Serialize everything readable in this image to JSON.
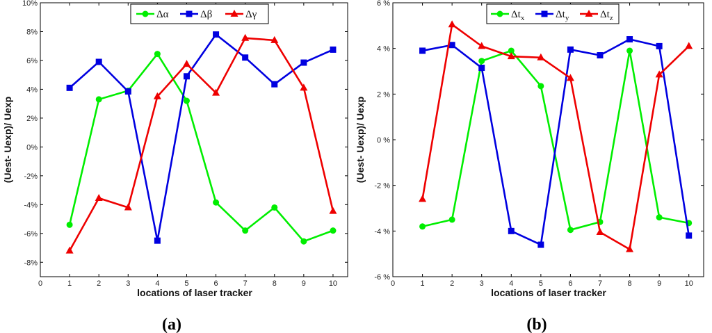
{
  "chart_data": [
    {
      "type": "line",
      "caption": "(a)",
      "xlabel": "locations of laser tracker",
      "ylabel": "(Uest- Uexp)/ Uexp",
      "xlim": [
        0,
        10.5
      ],
      "ylim": [
        -9,
        10
      ],
      "xticks": [
        "0",
        "1",
        "2",
        "3",
        "4",
        "5",
        "6",
        "7",
        "8",
        "9",
        "10"
      ],
      "yticks": [
        {
          "v": 10,
          "label": "10%"
        },
        {
          "v": 8,
          "label": "8%"
        },
        {
          "v": 6,
          "label": "6%"
        },
        {
          "v": 4,
          "label": "4%"
        },
        {
          "v": 2,
          "label": "2%"
        },
        {
          "v": 0,
          "label": "0%"
        },
        {
          "v": -2,
          "label": "-2%"
        },
        {
          "v": -4,
          "label": "-4%"
        },
        {
          "v": -6,
          "label": "-6%"
        },
        {
          "v": -8,
          "label": "-8%"
        }
      ],
      "legend_position": "top-center",
      "x": [
        1,
        2,
        3,
        4,
        5,
        6,
        7,
        8,
        9,
        10
      ],
      "series": [
        {
          "name": "Δα",
          "sub": "",
          "color": "#00ee00",
          "marker": "circle",
          "values": [
            -5.4,
            3.3,
            3.9,
            6.45,
            3.2,
            -3.85,
            -5.8,
            -4.2,
            -6.55,
            -5.8
          ]
        },
        {
          "name": "Δβ",
          "sub": "",
          "color": "#0000e0",
          "marker": "square",
          "values": [
            4.1,
            5.9,
            3.85,
            -6.5,
            4.9,
            7.8,
            6.2,
            4.35,
            5.85,
            6.75
          ]
        },
        {
          "name": "Δγ",
          "sub": "",
          "color": "#ee0000",
          "marker": "triangle",
          "values": [
            -7.2,
            -3.55,
            -4.2,
            3.5,
            5.75,
            3.75,
            7.55,
            7.4,
            4.1,
            -4.45
          ]
        }
      ]
    },
    {
      "type": "line",
      "caption": "(b)",
      "xlabel": "locations of laser tracker",
      "ylabel": "(Uest- Uexp)/ Uexp",
      "xlim": [
        0,
        10.5
      ],
      "ylim": [
        -6,
        6
      ],
      "xticks": [
        "0",
        "1",
        "2",
        "3",
        "4",
        "5",
        "6",
        "7",
        "8",
        "9",
        "10"
      ],
      "yticks": [
        {
          "v": 6,
          "label": "6 %"
        },
        {
          "v": 4,
          "label": "4 %"
        },
        {
          "v": 2,
          "label": "2 %"
        },
        {
          "v": 0,
          "label": "0 %"
        },
        {
          "v": -2,
          "label": "-2 %"
        },
        {
          "v": -4,
          "label": "-4 %"
        },
        {
          "v": -6,
          "label": "-6 %"
        }
      ],
      "legend_position": "top-center",
      "x": [
        1,
        2,
        3,
        4,
        5,
        6,
        7,
        8,
        9,
        10
      ],
      "series": [
        {
          "name": "Δt",
          "sub": "x",
          "color": "#00ee00",
          "marker": "circle",
          "values": [
            -3.8,
            -3.5,
            3.45,
            3.9,
            2.35,
            -3.95,
            -3.6,
            3.9,
            -3.4,
            -3.65
          ]
        },
        {
          "name": "Δt",
          "sub": "y",
          "color": "#0000e0",
          "marker": "square",
          "values": [
            3.9,
            4.15,
            3.15,
            -4.0,
            -4.6,
            3.95,
            3.7,
            4.4,
            4.1,
            -4.2
          ]
        },
        {
          "name": "Δt",
          "sub": "z",
          "color": "#ee0000",
          "marker": "triangle",
          "values": [
            -2.6,
            5.05,
            4.1,
            3.65,
            3.6,
            2.7,
            -4.05,
            -4.8,
            2.85,
            4.1
          ]
        }
      ]
    }
  ]
}
